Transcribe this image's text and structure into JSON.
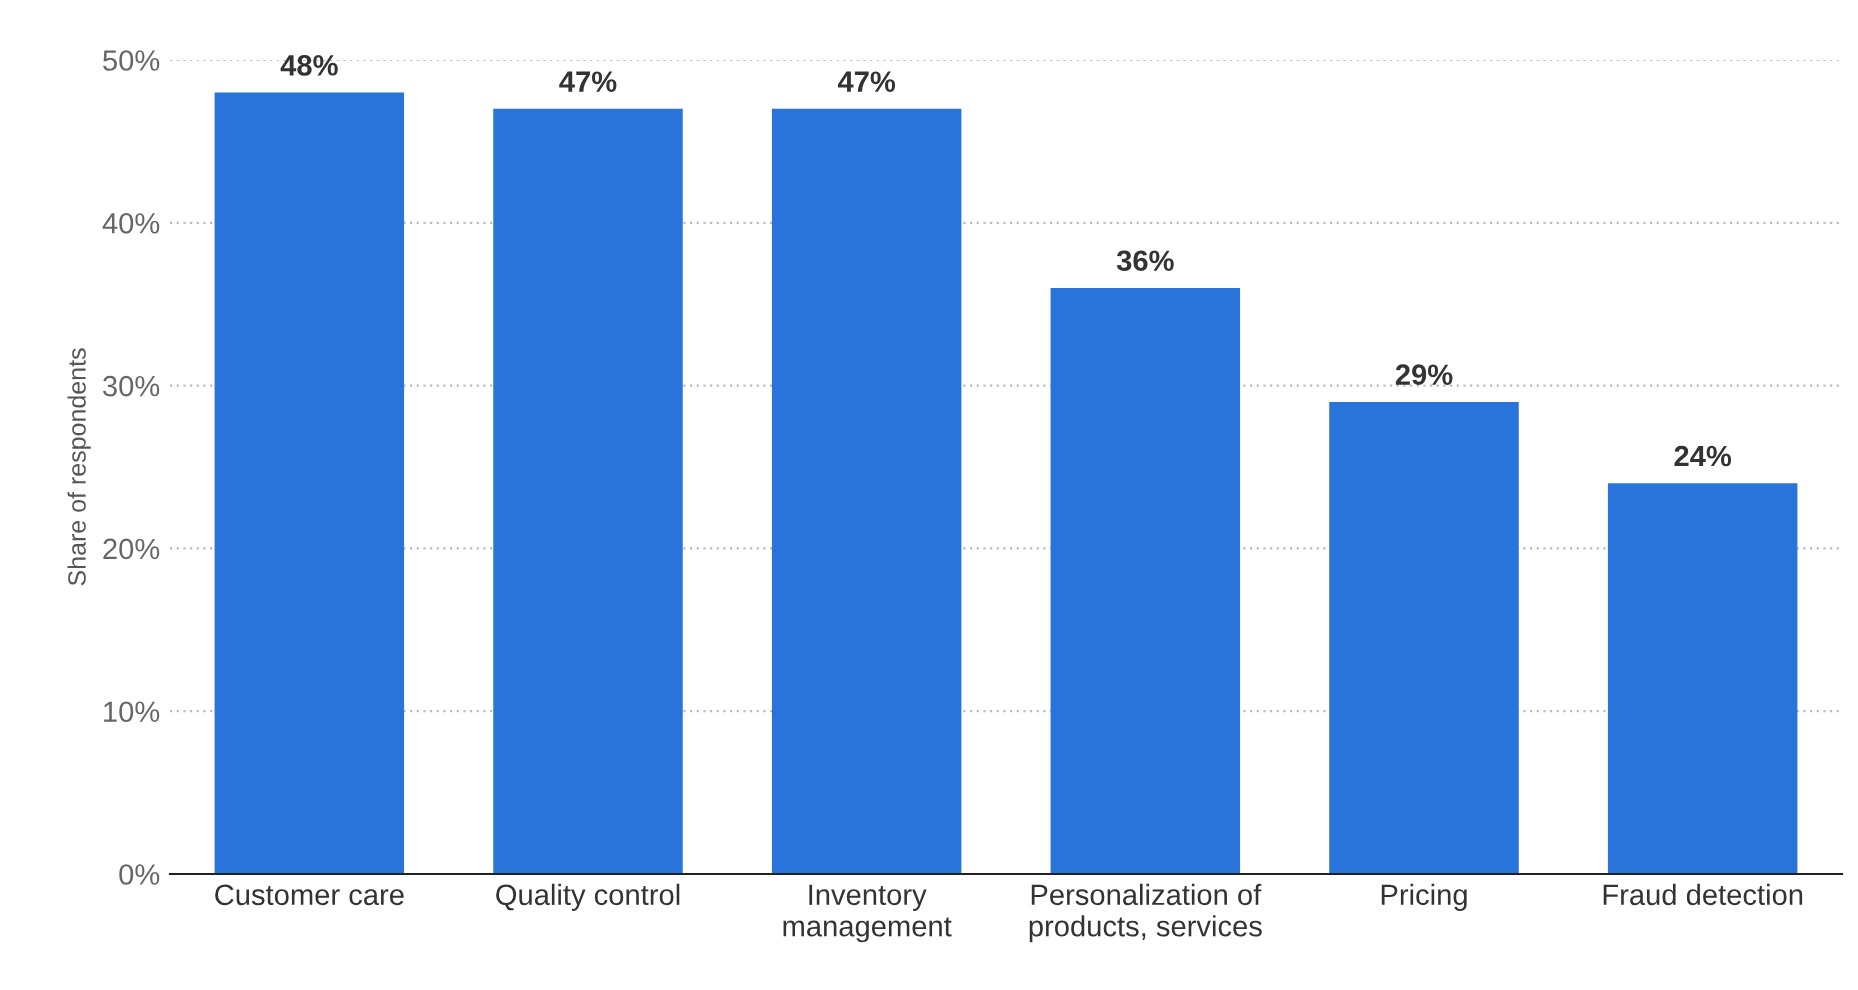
{
  "chart_data": {
    "type": "bar",
    "ylabel": "Share of respondents",
    "categories": [
      "Customer care",
      "Quality control",
      "Inventory\nmanagement",
      "Personalization of\nproducts, services",
      "Pricing",
      "Fraud detection"
    ],
    "values": [
      48,
      47,
      47,
      36,
      29,
      24
    ],
    "value_labels": [
      "48%",
      "47%",
      "47%",
      "36%",
      "29%",
      "24%"
    ],
    "color": "#2874db",
    "ylim": [
      0,
      50
    ],
    "yticks": [
      {
        "value": 0,
        "label": "0%"
      },
      {
        "value": 10,
        "label": "10%"
      },
      {
        "value": 20,
        "label": "20%"
      },
      {
        "value": 30,
        "label": "30%"
      },
      {
        "value": 40,
        "label": "40%"
      },
      {
        "value": 50,
        "label": "50%"
      }
    ],
    "grid": "y",
    "legend": false
  }
}
